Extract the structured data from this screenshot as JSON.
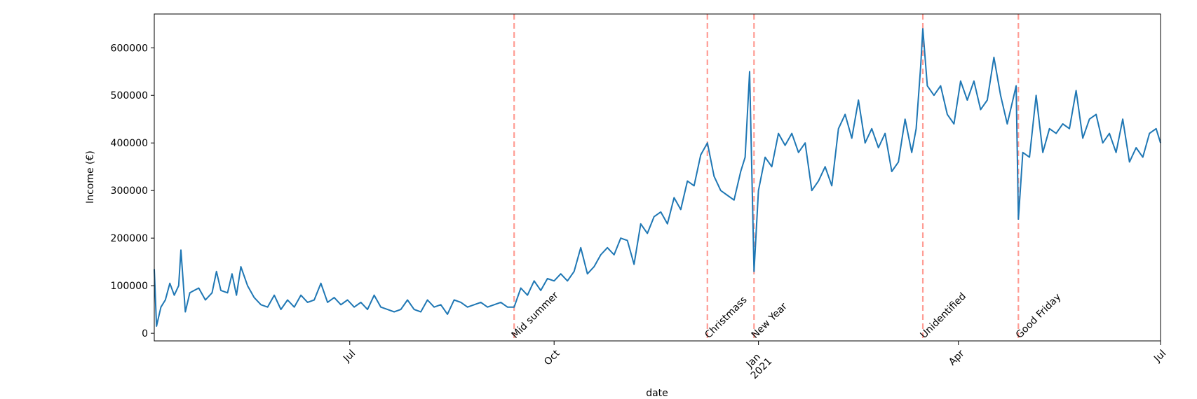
{
  "chart_data": {
    "type": "line",
    "xlabel": "date",
    "ylabel": "Income (€)",
    "color": "#1f77b4",
    "xlim": [
      0,
      453
    ],
    "ylim": [
      -16000,
      671000
    ],
    "xticks": [
      {
        "value": 88,
        "label": "Jul"
      },
      {
        "value": 180,
        "label": "Oct"
      },
      {
        "value": 272,
        "label": "Jan\n2021"
      },
      {
        "value": 362,
        "label": "Apr"
      },
      {
        "value": 453,
        "label": "Jul"
      }
    ],
    "yticks": [
      0,
      100000,
      200000,
      300000,
      400000,
      500000,
      600000
    ],
    "x": [
      0,
      1,
      3,
      5,
      7,
      9,
      11,
      12,
      14,
      16,
      18,
      20,
      23,
      26,
      28,
      30,
      33,
      35,
      37,
      39,
      42,
      45,
      48,
      51,
      54,
      57,
      60,
      63,
      66,
      69,
      72,
      75,
      78,
      81,
      84,
      87,
      90,
      93,
      96,
      99,
      102,
      105,
      108,
      111,
      114,
      117,
      120,
      123,
      126,
      129,
      132,
      135,
      138,
      141,
      144,
      147,
      150,
      153,
      156,
      159,
      162,
      165,
      168,
      171,
      174,
      177,
      180,
      183,
      186,
      189,
      192,
      195,
      198,
      201,
      204,
      207,
      210,
      213,
      216,
      219,
      222,
      225,
      228,
      231,
      234,
      237,
      240,
      243,
      246,
      249,
      252,
      255,
      258,
      261,
      264,
      266,
      268,
      270,
      272,
      275,
      278,
      281,
      284,
      287,
      290,
      293,
      296,
      299,
      302,
      305,
      308,
      311,
      314,
      317,
      320,
      323,
      326,
      329,
      332,
      335,
      338,
      341,
      343,
      345,
      346,
      348,
      351,
      354,
      357,
      360,
      363,
      366,
      369,
      372,
      375,
      378,
      381,
      384,
      386,
      388,
      389,
      391,
      394,
      397,
      400,
      403,
      406,
      409,
      412,
      415,
      418,
      421,
      424,
      427,
      430,
      433,
      436,
      439,
      442,
      445,
      448,
      451,
      453
    ],
    "values": [
      135000,
      15000,
      55000,
      70000,
      105000,
      80000,
      100000,
      175000,
      45000,
      85000,
      90000,
      95000,
      70000,
      85000,
      130000,
      90000,
      85000,
      125000,
      80000,
      140000,
      100000,
      75000,
      60000,
      55000,
      80000,
      50000,
      70000,
      55000,
      80000,
      65000,
      70000,
      105000,
      65000,
      75000,
      60000,
      70000,
      55000,
      65000,
      50000,
      80000,
      55000,
      50000,
      45000,
      50000,
      70000,
      50000,
      45000,
      70000,
      55000,
      60000,
      40000,
      70000,
      65000,
      55000,
      60000,
      65000,
      55000,
      60000,
      65000,
      55000,
      55000,
      95000,
      80000,
      110000,
      90000,
      115000,
      110000,
      125000,
      110000,
      130000,
      180000,
      125000,
      140000,
      165000,
      180000,
      165000,
      200000,
      195000,
      145000,
      230000,
      210000,
      245000,
      255000,
      230000,
      285000,
      260000,
      320000,
      310000,
      375000,
      400000,
      330000,
      300000,
      290000,
      280000,
      340000,
      370000,
      550000,
      130000,
      300000,
      370000,
      350000,
      420000,
      395000,
      420000,
      380000,
      400000,
      300000,
      320000,
      350000,
      310000,
      430000,
      460000,
      410000,
      490000,
      400000,
      430000,
      390000,
      420000,
      340000,
      360000,
      450000,
      380000,
      430000,
      560000,
      640000,
      520000,
      500000,
      520000,
      460000,
      440000,
      530000,
      490000,
      530000,
      470000,
      490000,
      580000,
      500000,
      440000,
      480000,
      520000,
      240000,
      380000,
      370000,
      500000,
      380000,
      430000,
      420000,
      440000,
      430000,
      510000,
      410000,
      450000,
      460000,
      400000,
      420000,
      380000,
      450000,
      360000,
      390000,
      370000,
      420000,
      430000,
      400000
    ],
    "events": [
      {
        "x": 162,
        "label": "Mid summer"
      },
      {
        "x": 249,
        "label": "Christmass"
      },
      {
        "x": 270,
        "label": "New Year"
      },
      {
        "x": 346,
        "label": "Unidentified"
      },
      {
        "x": 389,
        "label": "Good Friday"
      }
    ]
  }
}
